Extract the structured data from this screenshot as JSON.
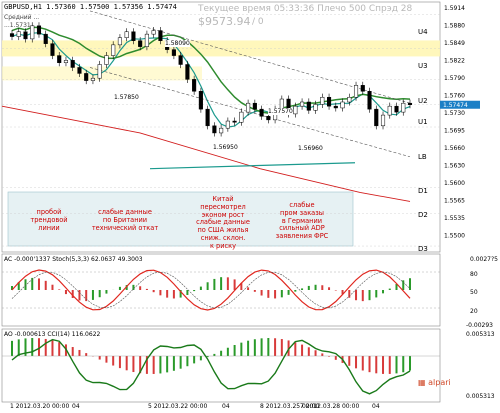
{
  "header": {
    "symbol": "GBPUSD,H1",
    "ohlc": "1.57360 1.57500 1.57356 1.57474",
    "overlay_text": "Текущее время 05:33:36 Плечо 500 Спрэд 28",
    "balance": "$9573.94",
    "zero_label": "/ 0",
    "legend_line1": "Средний ...",
    "legend_line2": "...1.5731"
  },
  "price_axis": {
    "ticks": [
      "1.5914",
      "1.5880",
      "1.5849",
      "1.5822",
      "1.5790",
      "1.5760",
      "1.5730",
      "1.5695",
      "1.5660",
      "1.5630",
      "1.5600",
      "1.5565",
      "1.5535",
      "1.5500"
    ],
    "current_price": "1.57474"
  },
  "levels": {
    "U4": "U4",
    "U3": "U3",
    "U2": "U2",
    "U1": "U1",
    "LB": "LB",
    "D1": "D1",
    "D2": "D2",
    "D3": "D3"
  },
  "price_labels": {
    "p1": "1.57850",
    "p2": "1.56950",
    "p3": "1.57570",
    "p4": "1.56960",
    "p5": "1.58090"
  },
  "annotations": [
    {
      "id": "breakout",
      "text": "пробой\nтрендовой\nлинии",
      "color": "#cc0000"
    },
    {
      "id": "uk_weak",
      "text": "слабые данные\nпо Британии\nтехнический откат",
      "color": "#cc0000"
    },
    {
      "id": "china",
      "text": "Китай\nпересмотрел\nэконом рост\nслабые данные\nпо США жилья\nсниж. склон.\nк риску",
      "color": "#cc0000"
    },
    {
      "id": "germany",
      "text": "слабые\nпром заказы\nв Германии\nсильный ADP\nзаявления ФРС",
      "color": "#cc0000"
    }
  ],
  "ac_panel": {
    "label": "AC -0.000'1337  Stoch(5,3,3) 62.0637 49.3003",
    "scale_top": "0.0027?5",
    "scale_80": "80",
    "scale_50": "50",
    "scale_20": "20",
    "scale_bottom": "-0.00293"
  },
  "ao_panel": {
    "label": "AO -0.000613  CCI(14) 116.0622",
    "scale_top": "0.005313",
    "scale_bottom": "0.005313",
    "watermark": "alpari"
  },
  "time_axis": {
    "labels": [
      "1 2012.03.20 00:00",
      "04",
      "5 2012.03.22 00:00",
      "04",
      "8 2012.03.25 00:00",
      "7 2012.03.28 00:00",
      "04"
    ]
  },
  "colors": {
    "bull_candle": "#ffffff",
    "bear_candle": "#000000",
    "ma_green": "#2e8b2e",
    "ma_teal": "#1b9a8e",
    "ma_red": "#d21e1e",
    "resistance_band": "#fff6b5",
    "stoch_red": "#e0271f",
    "cci_green": "#1a7a1a"
  },
  "chart_data": {
    "type": "candlestick",
    "symbol": "GBPUSD",
    "timeframe": "H1",
    "ylim": [
      1.55,
      1.592
    ],
    "candles_close": [
      1.5862,
      1.587,
      1.5858,
      1.588,
      1.5866,
      1.585,
      1.583,
      1.5818,
      1.5822,
      1.581,
      1.58,
      1.5788,
      1.5792,
      1.5815,
      1.583,
      1.5848,
      1.586,
      1.587,
      1.5855,
      1.5845,
      1.5866,
      1.5872,
      1.5855,
      1.584,
      1.583,
      1.5815,
      1.579,
      1.577,
      1.574,
      1.5712,
      1.57,
      1.5708,
      1.572,
      1.5718,
      1.5735,
      1.575,
      1.574,
      1.5728,
      1.5722,
      1.574,
      1.5757,
      1.5732,
      1.5745,
      1.5752,
      1.5738,
      1.5748,
      1.576,
      1.5745,
      1.5742,
      1.5752,
      1.576,
      1.578,
      1.577,
      1.574,
      1.5712,
      1.573,
      1.5745,
      1.5735,
      1.575,
      1.57474
    ],
    "levels": {
      "U4": 1.5899,
      "U3": 1.5842,
      "U2": 1.579,
      "U1": 1.5748,
      "LB": 1.571,
      "D1": 1.5608,
      "D2": 1.5565,
      "D3": 1.551
    },
    "marked_prices": [
      1.5785,
      1.5695,
      1.5757,
      1.5696,
      1.5809
    ]
  }
}
